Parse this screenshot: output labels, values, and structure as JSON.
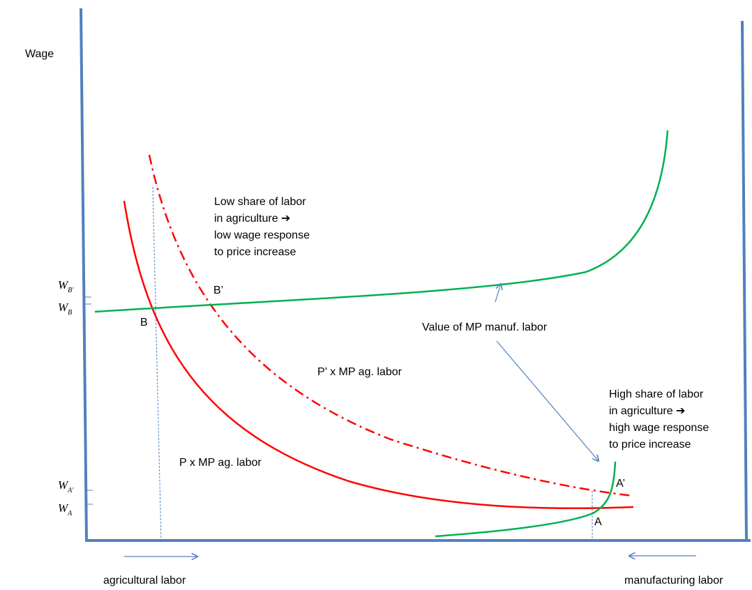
{
  "axes": {
    "y_label": "Wage",
    "x_left_label": "agricultural labor",
    "x_right_label": "manufacturing labor"
  },
  "wage_ticks": [
    {
      "symbol": "W",
      "sub": "B'"
    },
    {
      "symbol": "W",
      "sub": "B"
    },
    {
      "symbol": "W",
      "sub": "A'"
    },
    {
      "symbol": "W",
      "sub": "A"
    }
  ],
  "points": {
    "B": "B",
    "B_prime": "B’",
    "A": "A",
    "A_prime": "A’"
  },
  "curves": {
    "ag_base": "P x MP ag. labor",
    "ag_shifted": "P’ x MP ag. labor",
    "manuf": "Value of MP manuf. labor"
  },
  "annotations": {
    "low_share": [
      "Low share of labor",
      "in agriculture ➔",
      "low wage response",
      "to price increase"
    ],
    "high_share": [
      "High share of labor",
      "in agriculture ➔",
      "high wage response",
      "to price increase"
    ]
  },
  "colors": {
    "axis": "#4f81bd",
    "ag_curve": "#ff0000",
    "manuf_curve": "#00b050",
    "guide": "#4f81bd",
    "arrow": "#4f81bd"
  }
}
